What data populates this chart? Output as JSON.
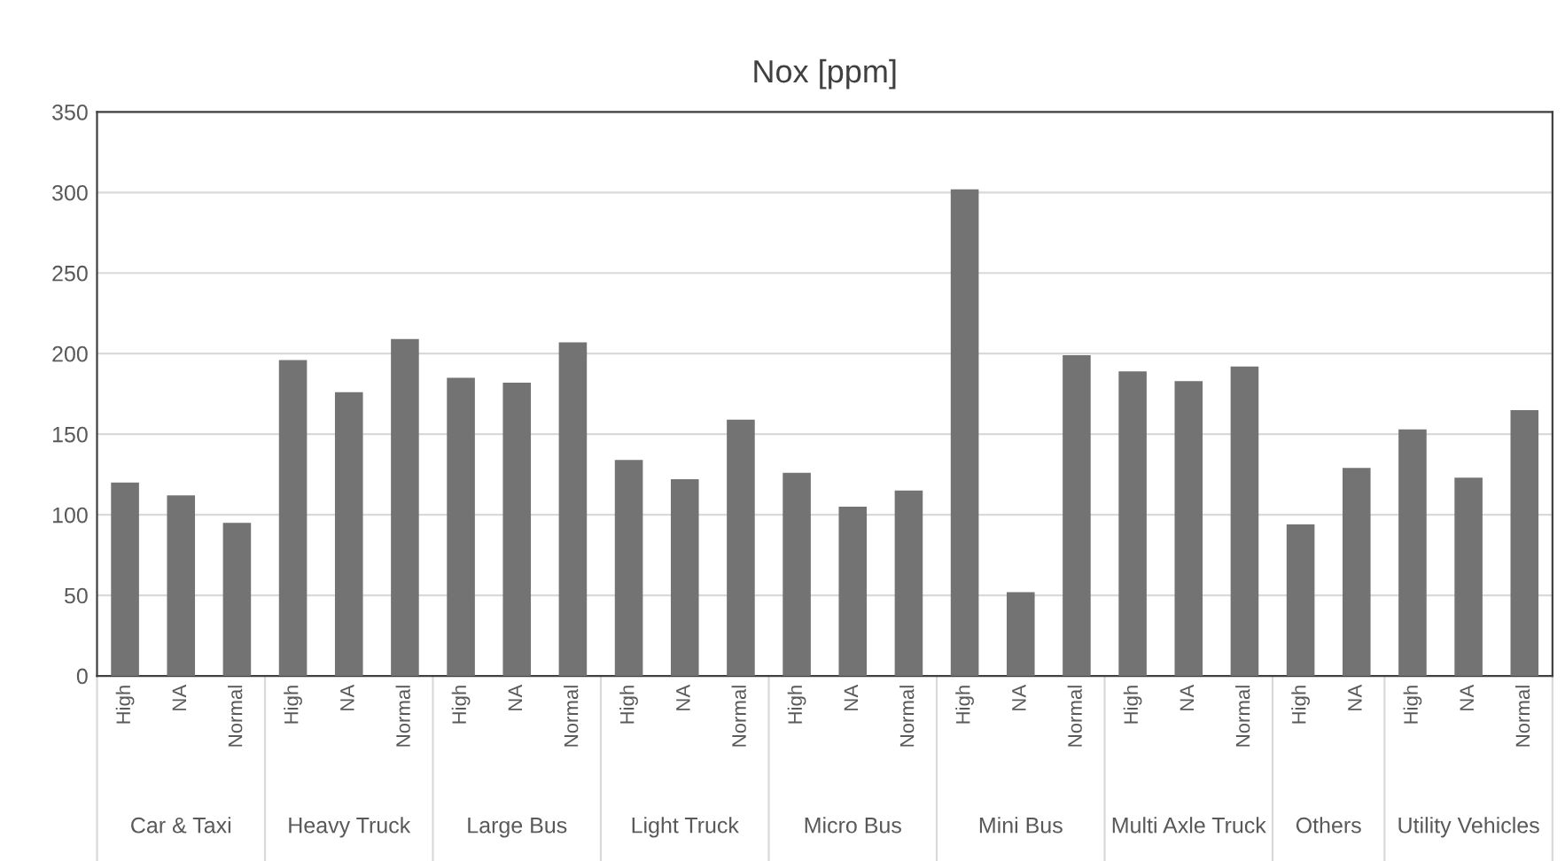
{
  "chart_data": {
    "type": "bar",
    "title": "Nox [ppm]",
    "categories": [
      "High",
      "NA",
      "Normal",
      "High",
      "NA",
      "Normal",
      "High",
      "NA",
      "Normal",
      "High",
      "NA",
      "Normal",
      "High",
      "NA",
      "Normal",
      "High",
      "NA",
      "Normal",
      "High",
      "NA",
      "Normal",
      "High",
      "NA",
      "High",
      "NA",
      "Normal"
    ],
    "values": [
      120,
      112,
      95,
      196,
      176,
      209,
      185,
      182,
      207,
      134,
      122,
      159,
      126,
      105,
      115,
      302,
      52,
      199,
      189,
      183,
      192,
      94,
      129,
      153,
      123,
      165
    ],
    "color": "#737373",
    "ylim": [
      0,
      350
    ],
    "yticks": [
      0,
      50,
      100,
      150,
      200,
      250,
      300,
      350
    ],
    "grid": "y",
    "annotations": [
      "Car & Taxi",
      "Heavy Truck",
      "Large Bus",
      "Light Truck",
      "Micro Bus",
      "Mini Bus",
      "Multi Axle Truck",
      "Others",
      "Utility Vehicles"
    ]
  }
}
